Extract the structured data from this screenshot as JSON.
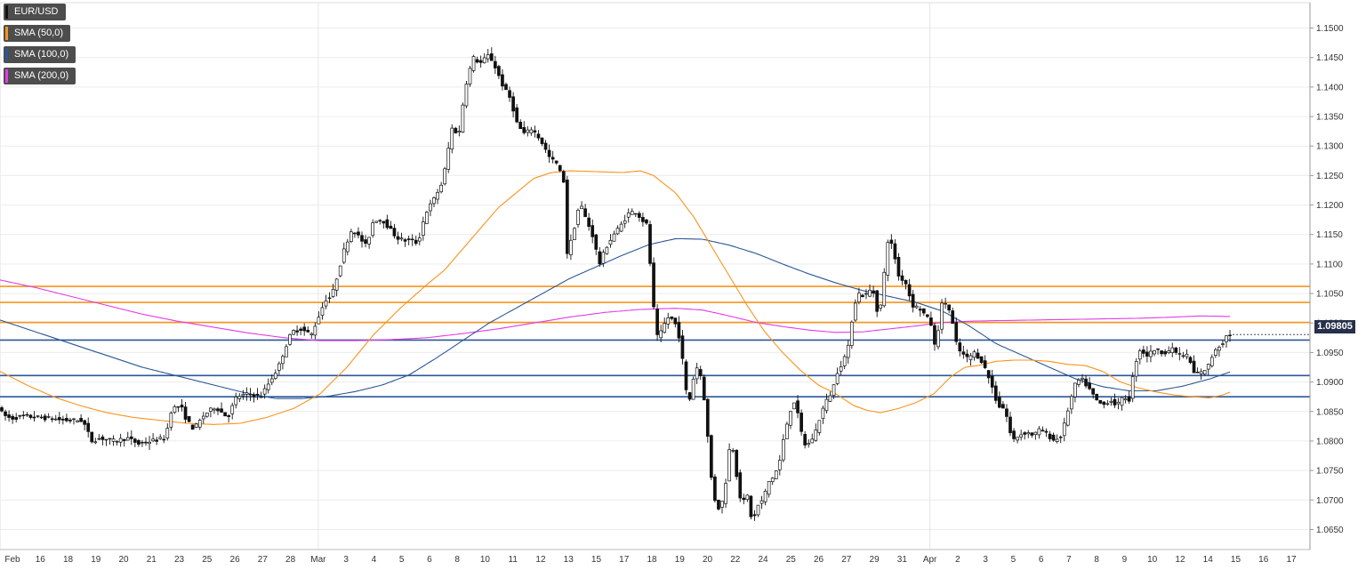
{
  "chart_data": {
    "type": "candlestick",
    "legend": [
      {
        "label": "EUR/USD",
        "color": "#111111"
      },
      {
        "label": "SMA (50,0)",
        "color": "#f7941d"
      },
      {
        "label": "SMA (100,0)",
        "color": "#2b5797"
      },
      {
        "label": "SMA (200,0)",
        "color": "#e23ce6"
      }
    ],
    "last_price_label": "1.09805",
    "last_price": 1.09805,
    "ylim": [
      1.0616,
      1.1543
    ],
    "y_ticks": [
      "1.1500",
      "1.1450",
      "1.1400",
      "1.1350",
      "1.1300",
      "1.1250",
      "1.1200",
      "1.1150",
      "1.1100",
      "1.1050",
      "1.1000",
      "1.0950",
      "1.0900",
      "1.0850",
      "1.0800",
      "1.0750",
      "1.0700",
      "1.0650"
    ],
    "x_ticks": [
      "Feb",
      "16",
      "18",
      "19",
      "20",
      "21",
      "23",
      "25",
      "26",
      "27",
      "28",
      "Mar",
      "3",
      "4",
      "5",
      "6",
      "8",
      "10",
      "11",
      "12",
      "13",
      "15",
      "17",
      "18",
      "19",
      "20",
      "22",
      "24",
      "25",
      "26",
      "27",
      "29",
      "31",
      "Apr",
      "2",
      "3",
      "5",
      "6",
      "7",
      "8",
      "9",
      "10",
      "12",
      "14",
      "15",
      "16",
      "17"
    ],
    "grid": true,
    "horizontal_levels": [
      {
        "value": 1.1062,
        "color": "#f7941d"
      },
      {
        "value": 1.1035,
        "color": "#f7941d"
      },
      {
        "value": 1.1001,
        "color": "#f7941d"
      },
      {
        "value": 1.0971,
        "color": "#2b5797"
      },
      {
        "value": 1.0911,
        "color": "#2b5797"
      },
      {
        "value": 1.0875,
        "color": "#2b5797"
      }
    ],
    "price_path": [
      [
        0,
        1.086
      ],
      [
        5,
        1.0845
      ],
      [
        14,
        1.0838
      ],
      [
        28,
        1.0842
      ],
      [
        45,
        1.084
      ],
      [
        60,
        1.0838
      ],
      [
        75,
        1.0835
      ],
      [
        95,
        1.0835
      ],
      [
        105,
        1.08
      ],
      [
        115,
        1.0805
      ],
      [
        130,
        1.08
      ],
      [
        145,
        1.0805
      ],
      [
        158,
        1.0795
      ],
      [
        172,
        1.08
      ],
      [
        188,
        1.0805
      ],
      [
        195,
        1.0855
      ],
      [
        205,
        1.086
      ],
      [
        212,
        1.0835
      ],
      [
        220,
        1.082
      ],
      [
        232,
        1.0845
      ],
      [
        244,
        1.0858
      ],
      [
        258,
        1.084
      ],
      [
        268,
        1.0875
      ],
      [
        282,
        1.088
      ],
      [
        295,
        1.0875
      ],
      [
        305,
        1.09
      ],
      [
        315,
        1.0925
      ],
      [
        322,
        1.0955
      ],
      [
        330,
        1.0985
      ],
      [
        340,
        1.099
      ],
      [
        352,
        1.098
      ],
      [
        360,
        1.101
      ],
      [
        368,
        1.104
      ],
      [
        375,
        1.1045
      ],
      [
        383,
        1.109
      ],
      [
        390,
        1.113
      ],
      [
        398,
        1.116
      ],
      [
        406,
        1.1145
      ],
      [
        414,
        1.113
      ],
      [
        422,
        1.1175
      ],
      [
        432,
        1.1175
      ],
      [
        440,
        1.116
      ],
      [
        448,
        1.1145
      ],
      [
        456,
        1.114
      ],
      [
        464,
        1.114
      ],
      [
        472,
        1.1135
      ],
      [
        480,
        1.1185
      ],
      [
        490,
        1.121
      ],
      [
        500,
        1.124
      ],
      [
        510,
        1.133
      ],
      [
        518,
        1.132
      ],
      [
        525,
        1.14
      ],
      [
        534,
        1.145
      ],
      [
        542,
        1.144
      ],
      [
        552,
        1.1455
      ],
      [
        560,
        1.143
      ],
      [
        568,
        1.14
      ],
      [
        576,
        1.138
      ],
      [
        584,
        1.1335
      ],
      [
        592,
        1.132
      ],
      [
        600,
        1.133
      ],
      [
        610,
        1.131
      ],
      [
        620,
        1.128
      ],
      [
        628,
        1.127
      ],
      [
        636,
        1.124
      ],
      [
        640,
        1.1115
      ],
      [
        646,
        1.115
      ],
      [
        654,
        1.1205
      ],
      [
        660,
        1.118
      ],
      [
        668,
        1.115
      ],
      [
        676,
        1.11
      ],
      [
        684,
        1.113
      ],
      [
        692,
        1.115
      ],
      [
        700,
        1.1165
      ],
      [
        708,
        1.1185
      ],
      [
        716,
        1.119
      ],
      [
        724,
        1.1175
      ],
      [
        730,
        1.1165
      ],
      [
        735,
        1.106
      ],
      [
        740,
        1.0975
      ],
      [
        746,
        1.0985
      ],
      [
        752,
        1.101
      ],
      [
        760,
        1.1005
      ],
      [
        768,
        1.0965
      ],
      [
        772,
        1.089
      ],
      [
        778,
        1.087
      ],
      [
        784,
        1.093
      ],
      [
        790,
        1.091
      ],
      [
        796,
        1.085
      ],
      [
        800,
        1.0755
      ],
      [
        806,
        1.07
      ],
      [
        812,
        1.068
      ],
      [
        818,
        1.073
      ],
      [
        824,
        1.081
      ],
      [
        830,
        1.0745
      ],
      [
        836,
        1.069
      ],
      [
        842,
        1.071
      ],
      [
        848,
        1.066
      ],
      [
        854,
        1.069
      ],
      [
        860,
        1.07
      ],
      [
        866,
        1.073
      ],
      [
        872,
        1.074
      ],
      [
        878,
        1.076
      ],
      [
        884,
        1.081
      ],
      [
        890,
        1.085
      ],
      [
        896,
        1.087
      ],
      [
        902,
        1.082
      ],
      [
        908,
        1.079
      ],
      [
        914,
        1.08
      ],
      [
        920,
        1.082
      ],
      [
        926,
        1.085
      ],
      [
        932,
        1.087
      ],
      [
        938,
        1.0885
      ],
      [
        944,
        1.092
      ],
      [
        950,
        1.0935
      ],
      [
        956,
        1.096
      ],
      [
        962,
        1.103
      ],
      [
        968,
        1.105
      ],
      [
        974,
        1.1045
      ],
      [
        980,
        1.1055
      ],
      [
        986,
        1.105
      ],
      [
        990,
        1.1
      ],
      [
        996,
        1.108
      ],
      [
        1000,
        1.114
      ],
      [
        1006,
        1.113
      ],
      [
        1012,
        1.108
      ],
      [
        1020,
        1.107
      ],
      [
        1028,
        1.103
      ],
      [
        1036,
        1.1025
      ],
      [
        1044,
        1.101
      ],
      [
        1050,
        1.0995
      ],
      [
        1054,
        1.095
      ],
      [
        1060,
        1.103
      ],
      [
        1066,
        1.1035
      ],
      [
        1072,
        1.101
      ],
      [
        1076,
        1.097
      ],
      [
        1082,
        1.095
      ],
      [
        1090,
        1.094
      ],
      [
        1098,
        1.095
      ],
      [
        1106,
        1.0935
      ],
      [
        1112,
        1.0915
      ],
      [
        1118,
        1.089
      ],
      [
        1124,
        1.086
      ],
      [
        1132,
        1.0855
      ],
      [
        1140,
        1.08
      ],
      [
        1148,
        1.081
      ],
      [
        1156,
        1.0815
      ],
      [
        1164,
        1.081
      ],
      [
        1172,
        1.082
      ],
      [
        1180,
        1.081
      ],
      [
        1188,
        1.08
      ],
      [
        1196,
        1.081
      ],
      [
        1204,
        1.086
      ],
      [
        1212,
        1.09
      ],
      [
        1218,
        1.0905
      ],
      [
        1226,
        1.089
      ],
      [
        1234,
        1.087
      ],
      [
        1242,
        1.086
      ],
      [
        1250,
        1.087
      ],
      [
        1258,
        1.086
      ],
      [
        1266,
        1.0875
      ],
      [
        1272,
        1.087
      ],
      [
        1278,
        1.093
      ],
      [
        1284,
        1.0955
      ],
      [
        1292,
        1.0945
      ],
      [
        1300,
        1.0955
      ],
      [
        1310,
        1.095
      ],
      [
        1320,
        1.0955
      ],
      [
        1330,
        1.0945
      ],
      [
        1338,
        1.0945
      ],
      [
        1344,
        1.0915
      ],
      [
        1352,
        1.0915
      ],
      [
        1360,
        1.0925
      ],
      [
        1368,
        1.0955
      ],
      [
        1376,
        1.0965
      ],
      [
        1382,
        1.098
      ],
      [
        1388,
        1.098
      ]
    ],
    "sma_50": [
      [
        0,
        1.0918
      ],
      [
        30,
        1.0895
      ],
      [
        60,
        1.0875
      ],
      [
        90,
        1.086
      ],
      [
        120,
        1.0848
      ],
      [
        150,
        1.084
      ],
      [
        180,
        1.0835
      ],
      [
        210,
        1.083
      ],
      [
        240,
        1.0828
      ],
      [
        270,
        1.083
      ],
      [
        300,
        1.084
      ],
      [
        330,
        1.0855
      ],
      [
        360,
        1.088
      ],
      [
        390,
        1.0925
      ],
      [
        420,
        1.098
      ],
      [
        450,
        1.1025
      ],
      [
        480,
        1.1065
      ],
      [
        500,
        1.109
      ],
      [
        520,
        1.1125
      ],
      [
        540,
        1.116
      ],
      [
        560,
        1.1195
      ],
      [
        580,
        1.122
      ],
      [
        600,
        1.1245
      ],
      [
        620,
        1.1255
      ],
      [
        640,
        1.1258
      ],
      [
        680,
        1.1256
      ],
      [
        700,
        1.1255
      ],
      [
        720,
        1.1258
      ],
      [
        735,
        1.125
      ],
      [
        760,
        1.122
      ],
      [
        780,
        1.118
      ],
      [
        800,
        1.113
      ],
      [
        820,
        1.108
      ],
      [
        840,
        1.103
      ],
      [
        860,
        1.0985
      ],
      [
        880,
        1.095
      ],
      [
        900,
        1.092
      ],
      [
        920,
        1.0895
      ],
      [
        940,
        1.088
      ],
      [
        960,
        1.086
      ],
      [
        975,
        1.0852
      ],
      [
        990,
        1.0848
      ],
      [
        1010,
        1.0855
      ],
      [
        1030,
        1.0865
      ],
      [
        1050,
        1.088
      ],
      [
        1070,
        1.091
      ],
      [
        1085,
        1.0925
      ],
      [
        1100,
        1.0928
      ],
      [
        1120,
        1.0935
      ],
      [
        1140,
        1.0937
      ],
      [
        1160,
        1.0937
      ],
      [
        1180,
        1.0935
      ],
      [
        1200,
        1.093
      ],
      [
        1220,
        1.0928
      ],
      [
        1240,
        1.0918
      ],
      [
        1260,
        1.09
      ],
      [
        1280,
        1.089
      ],
      [
        1300,
        1.0883
      ],
      [
        1320,
        1.0878
      ],
      [
        1340,
        1.0875
      ],
      [
        1360,
        1.0873
      ],
      [
        1375,
        1.0878
      ],
      [
        1385,
        1.0884
      ]
    ],
    "sma_100": [
      [
        0,
        1.1005
      ],
      [
        40,
        1.0985
      ],
      [
        80,
        1.0965
      ],
      [
        120,
        1.0945
      ],
      [
        160,
        1.0925
      ],
      [
        200,
        1.091
      ],
      [
        240,
        1.0895
      ],
      [
        280,
        1.088
      ],
      [
        310,
        1.0872
      ],
      [
        340,
        1.0872
      ],
      [
        370,
        1.0876
      ],
      [
        400,
        1.0884
      ],
      [
        430,
        1.0895
      ],
      [
        460,
        1.0912
      ],
      [
        490,
        1.094
      ],
      [
        520,
        1.097
      ],
      [
        550,
        1.1
      ],
      [
        580,
        1.1025
      ],
      [
        610,
        1.105
      ],
      [
        640,
        1.1075
      ],
      [
        670,
        1.1095
      ],
      [
        700,
        1.1115
      ],
      [
        730,
        1.1133
      ],
      [
        760,
        1.1143
      ],
      [
        790,
        1.1142
      ],
      [
        820,
        1.1132
      ],
      [
        850,
        1.1118
      ],
      [
        880,
        1.11
      ],
      [
        910,
        1.1083
      ],
      [
        940,
        1.1068
      ],
      [
        970,
        1.1055
      ],
      [
        1000,
        1.1045
      ],
      [
        1030,
        1.1035
      ],
      [
        1060,
        1.102
      ],
      [
        1090,
        1.0995
      ],
      [
        1120,
        1.0965
      ],
      [
        1150,
        1.0945
      ],
      [
        1180,
        1.0925
      ],
      [
        1210,
        1.0905
      ],
      [
        1240,
        1.0892
      ],
      [
        1270,
        1.0885
      ],
      [
        1300,
        1.0885
      ],
      [
        1330,
        1.0893
      ],
      [
        1360,
        1.0905
      ],
      [
        1385,
        1.0918
      ]
    ],
    "sma_200": [
      [
        0,
        1.1073
      ],
      [
        40,
        1.106
      ],
      [
        80,
        1.1045
      ],
      [
        120,
        1.103
      ],
      [
        160,
        1.1015
      ],
      [
        200,
        1.1003
      ],
      [
        240,
        1.0993
      ],
      [
        280,
        1.0983
      ],
      [
        320,
        1.0975
      ],
      [
        360,
        1.097
      ],
      [
        400,
        1.097
      ],
      [
        440,
        1.0972
      ],
      [
        480,
        1.0975
      ],
      [
        520,
        1.0982
      ],
      [
        560,
        1.099
      ],
      [
        600,
        1.1
      ],
      [
        640,
        1.101
      ],
      [
        680,
        1.1018
      ],
      [
        720,
        1.1023
      ],
      [
        760,
        1.1025
      ],
      [
        790,
        1.1022
      ],
      [
        820,
        1.1012
      ],
      [
        850,
        1.1001
      ],
      [
        880,
        1.0994
      ],
      [
        910,
        1.0988
      ],
      [
        940,
        1.0984
      ],
      [
        970,
        1.0985
      ],
      [
        1000,
        1.099
      ],
      [
        1030,
        1.0995
      ],
      [
        1060,
        1.1001
      ],
      [
        1090,
        1.1003
      ],
      [
        1120,
        1.1004
      ],
      [
        1160,
        1.1005
      ],
      [
        1200,
        1.1006
      ],
      [
        1240,
        1.1007
      ],
      [
        1280,
        1.1008
      ],
      [
        1320,
        1.101
      ],
      [
        1350,
        1.1012
      ],
      [
        1385,
        1.1011
      ]
    ]
  }
}
